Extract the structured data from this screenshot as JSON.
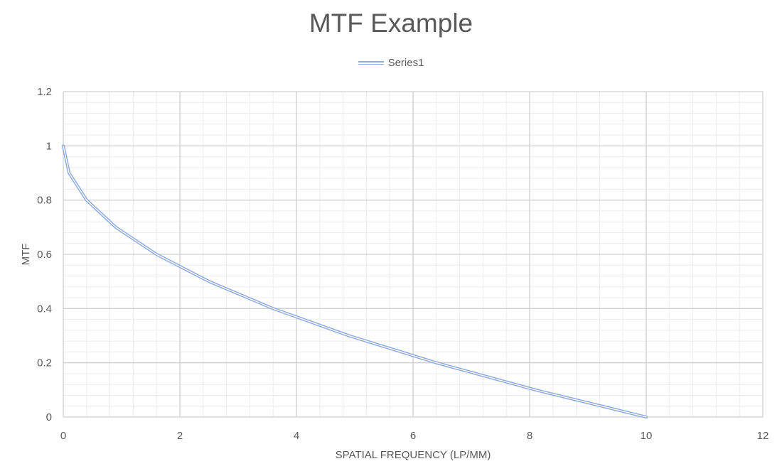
{
  "chart_data": {
    "type": "line",
    "title": "MTF Example",
    "xlabel": "SPATIAL FREQUENCY (LP/MM)",
    "ylabel": "MTF",
    "xlim": [
      0,
      12
    ],
    "ylim": [
      0,
      1.2
    ],
    "x_ticks": [
      "0",
      "2",
      "4",
      "6",
      "8",
      "10",
      "12"
    ],
    "y_ticks": [
      "0",
      "0.2",
      "0.4",
      "0.6",
      "0.8",
      "1",
      "1.2"
    ],
    "x_major_step": 2,
    "x_minor_step": 0.4,
    "y_major_step": 0.2,
    "y_minor_step": 0.04,
    "grid": true,
    "legend_position": "top",
    "series": [
      {
        "name": "Series1",
        "color": "#8faadc",
        "x": [
          0,
          0.1,
          0.4,
          0.9,
          1.6,
          2.5,
          3.6,
          4.9,
          6.4,
          8.1,
          10
        ],
        "values": [
          1,
          0.9,
          0.8,
          0.7,
          0.6,
          0.5,
          0.4,
          0.3,
          0.2,
          0.1,
          0
        ]
      }
    ]
  }
}
